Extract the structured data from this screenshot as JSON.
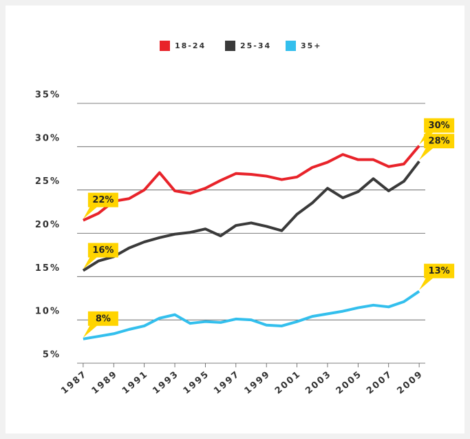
{
  "chart_data": {
    "type": "line",
    "x": [
      1987,
      1988,
      1989,
      1990,
      1991,
      1992,
      1993,
      1994,
      1995,
      1996,
      1997,
      1998,
      1999,
      2000,
      2001,
      2002,
      2003,
      2004,
      2005,
      2006,
      2007,
      2008,
      2009
    ],
    "series": [
      {
        "name": "18-24",
        "color": "#e8232a",
        "values": [
          21.5,
          22.3,
          23.7,
          24.0,
          25.0,
          27.0,
          24.9,
          24.6,
          25.2,
          26.1,
          26.9,
          26.8,
          26.6,
          26.2,
          26.5,
          27.6,
          28.2,
          29.1,
          28.5,
          28.5,
          27.7,
          28.0,
          30.1
        ],
        "value_labels": [
          "22%",
          null,
          null,
          null,
          null,
          null,
          null,
          null,
          null,
          null,
          null,
          null,
          null,
          null,
          null,
          null,
          null,
          null,
          null,
          null,
          null,
          null,
          "30%"
        ]
      },
      {
        "name": "25-34",
        "color": "#3a3a3a",
        "values": [
          15.7,
          16.8,
          17.3,
          18.3,
          19.0,
          19.5,
          19.9,
          20.1,
          20.5,
          19.7,
          20.9,
          21.2,
          20.8,
          20.3,
          22.2,
          23.5,
          25.2,
          24.1,
          24.8,
          26.3,
          24.9,
          26.0,
          28.3
        ],
        "value_labels": [
          "16%",
          null,
          null,
          null,
          null,
          null,
          null,
          null,
          null,
          null,
          null,
          null,
          null,
          null,
          null,
          null,
          null,
          null,
          null,
          null,
          null,
          null,
          "28%"
        ]
      },
      {
        "name": "35+",
        "color": "#33bfed",
        "values": [
          7.8,
          8.1,
          8.4,
          8.9,
          9.3,
          10.2,
          10.6,
          9.6,
          9.8,
          9.7,
          10.1,
          10.0,
          9.4,
          9.3,
          9.8,
          10.4,
          10.7,
          11.0,
          11.4,
          11.7,
          11.5,
          12.1,
          13.3
        ],
        "value_labels": [
          "8%",
          null,
          null,
          null,
          null,
          null,
          null,
          null,
          null,
          null,
          null,
          null,
          null,
          null,
          null,
          null,
          null,
          null,
          null,
          null,
          null,
          null,
          "13%"
        ]
      }
    ],
    "xlim": [
      1986.6,
      2009.4
    ],
    "xticks": [
      1987,
      1989,
      1991,
      1993,
      1995,
      1997,
      1999,
      2001,
      2003,
      2005,
      2007,
      2009
    ],
    "ylim": [
      5,
      35
    ],
    "yticks": [
      {
        "value": 5,
        "label": "5%"
      },
      {
        "value": 10,
        "label": "10%"
      },
      {
        "value": 15,
        "label": "15%"
      },
      {
        "value": 20,
        "label": "20%"
      },
      {
        "value": 25,
        "label": "25%"
      },
      {
        "value": 30,
        "label": "30%"
      },
      {
        "value": 35,
        "label": "35%"
      }
    ],
    "grid": true,
    "legend": "top"
  }
}
